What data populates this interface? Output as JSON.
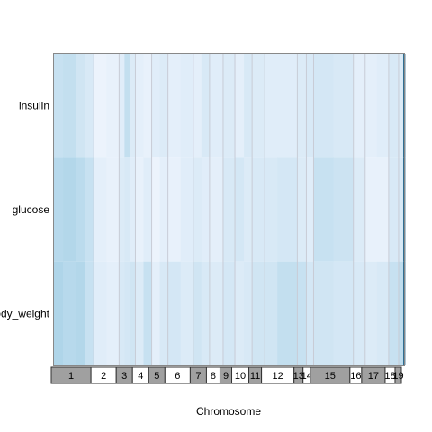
{
  "chart_data": {
    "type": "heatmap",
    "title": "",
    "xlabel": "Chromosome",
    "ylabel": "",
    "rows": [
      "insulin",
      "glucose",
      "body_weight"
    ],
    "chromosomes": [
      {
        "label": "1",
        "weight": 44
      },
      {
        "label": "2",
        "weight": 28
      },
      {
        "label": "3",
        "weight": 18
      },
      {
        "label": "4",
        "weight": 18
      },
      {
        "label": "5",
        "weight": 18
      },
      {
        "label": "6",
        "weight": 28
      },
      {
        "label": "7",
        "weight": 18
      },
      {
        "label": "8",
        "weight": 15
      },
      {
        "label": "9",
        "weight": 13
      },
      {
        "label": "10",
        "weight": 19
      },
      {
        "label": "11",
        "weight": 14
      },
      {
        "label": "12",
        "weight": 36
      },
      {
        "label": "13",
        "weight": 10
      },
      {
        "label": "14",
        "weight": 8
      },
      {
        "label": "15",
        "weight": 44
      },
      {
        "label": "16",
        "weight": 13
      },
      {
        "label": "17",
        "weight": 26
      },
      {
        "label": "18",
        "weight": 11
      },
      {
        "label": "19",
        "weight": 7
      }
    ],
    "band_colors": [
      "#a0a0a0",
      "#ffffff"
    ],
    "color_scale": {
      "low": "#f4f7ff",
      "high": "#a3cfe5",
      "max_color": "#2e6f93"
    },
    "segments": [
      {
        "chr": "1",
        "w": 10,
        "v": [
          0.55,
          0.75,
          0.85
        ]
      },
      {
        "chr": "1",
        "w": 14,
        "v": [
          0.6,
          0.8,
          0.75
        ]
      },
      {
        "chr": "1",
        "w": 10,
        "v": [
          0.45,
          0.7,
          0.8
        ]
      },
      {
        "chr": "1",
        "w": 10,
        "v": [
          0.35,
          0.55,
          0.55
        ]
      },
      {
        "chr": "2",
        "w": 14,
        "v": [
          0.1,
          0.2,
          0.25
        ]
      },
      {
        "chr": "2",
        "w": 14,
        "v": [
          0.15,
          0.15,
          0.2
        ]
      },
      {
        "chr": "3",
        "w": 6,
        "v": [
          0.25,
          0.3,
          0.35
        ]
      },
      {
        "chr": "3",
        "w": 6,
        "v": [
          0.6,
          0.35,
          0.4
        ]
      },
      {
        "chr": "3",
        "w": 6,
        "v": [
          0.3,
          0.25,
          0.45
        ]
      },
      {
        "chr": "4",
        "w": 9,
        "v": [
          0.2,
          0.15,
          0.3
        ]
      },
      {
        "chr": "4",
        "w": 9,
        "v": [
          0.15,
          0.25,
          0.55
        ]
      },
      {
        "chr": "5",
        "w": 9,
        "v": [
          0.25,
          0.1,
          0.2
        ]
      },
      {
        "chr": "5",
        "w": 9,
        "v": [
          0.3,
          0.2,
          0.35
        ]
      },
      {
        "chr": "6",
        "w": 14,
        "v": [
          0.2,
          0.15,
          0.4
        ]
      },
      {
        "chr": "6",
        "w": 14,
        "v": [
          0.25,
          0.25,
          0.3
        ]
      },
      {
        "chr": "7",
        "w": 9,
        "v": [
          0.2,
          0.3,
          0.45
        ]
      },
      {
        "chr": "7",
        "w": 9,
        "v": [
          0.35,
          0.25,
          0.35
        ]
      },
      {
        "chr": "8",
        "w": 15,
        "v": [
          0.25,
          0.2,
          0.3
        ]
      },
      {
        "chr": "9",
        "w": 13,
        "v": [
          0.3,
          0.35,
          0.4
        ]
      },
      {
        "chr": "10",
        "w": 10,
        "v": [
          0.2,
          0.4,
          0.3
        ]
      },
      {
        "chr": "10",
        "w": 9,
        "v": [
          0.35,
          0.3,
          0.35
        ]
      },
      {
        "chr": "11",
        "w": 14,
        "v": [
          0.3,
          0.35,
          0.45
        ]
      },
      {
        "chr": "12",
        "w": 14,
        "v": [
          0.25,
          0.35,
          0.45
        ]
      },
      {
        "chr": "12",
        "w": 22,
        "v": [
          0.25,
          0.4,
          0.6
        ]
      },
      {
        "chr": "13",
        "w": 10,
        "v": [
          0.3,
          0.3,
          0.55
        ]
      },
      {
        "chr": "14",
        "w": 8,
        "v": [
          0.35,
          0.25,
          0.4
        ]
      },
      {
        "chr": "15",
        "w": 22,
        "v": [
          0.4,
          0.55,
          0.45
        ]
      },
      {
        "chr": "15",
        "w": 22,
        "v": [
          0.35,
          0.5,
          0.4
        ]
      },
      {
        "chr": "16",
        "w": 13,
        "v": [
          0.2,
          0.3,
          0.35
        ]
      },
      {
        "chr": "17",
        "w": 13,
        "v": [
          0.2,
          0.15,
          0.3
        ]
      },
      {
        "chr": "17",
        "w": 13,
        "v": [
          0.25,
          0.15,
          0.35
        ]
      },
      {
        "chr": "18",
        "w": 11,
        "v": [
          0.35,
          0.35,
          0.55
        ]
      },
      {
        "chr": "19",
        "w": 5,
        "v": [
          0.3,
          0.35,
          0.65
        ]
      },
      {
        "chr": "19",
        "w": 2,
        "v": [
          1.0,
          1.0,
          1.0
        ]
      }
    ],
    "legend": "none",
    "grid": false
  }
}
